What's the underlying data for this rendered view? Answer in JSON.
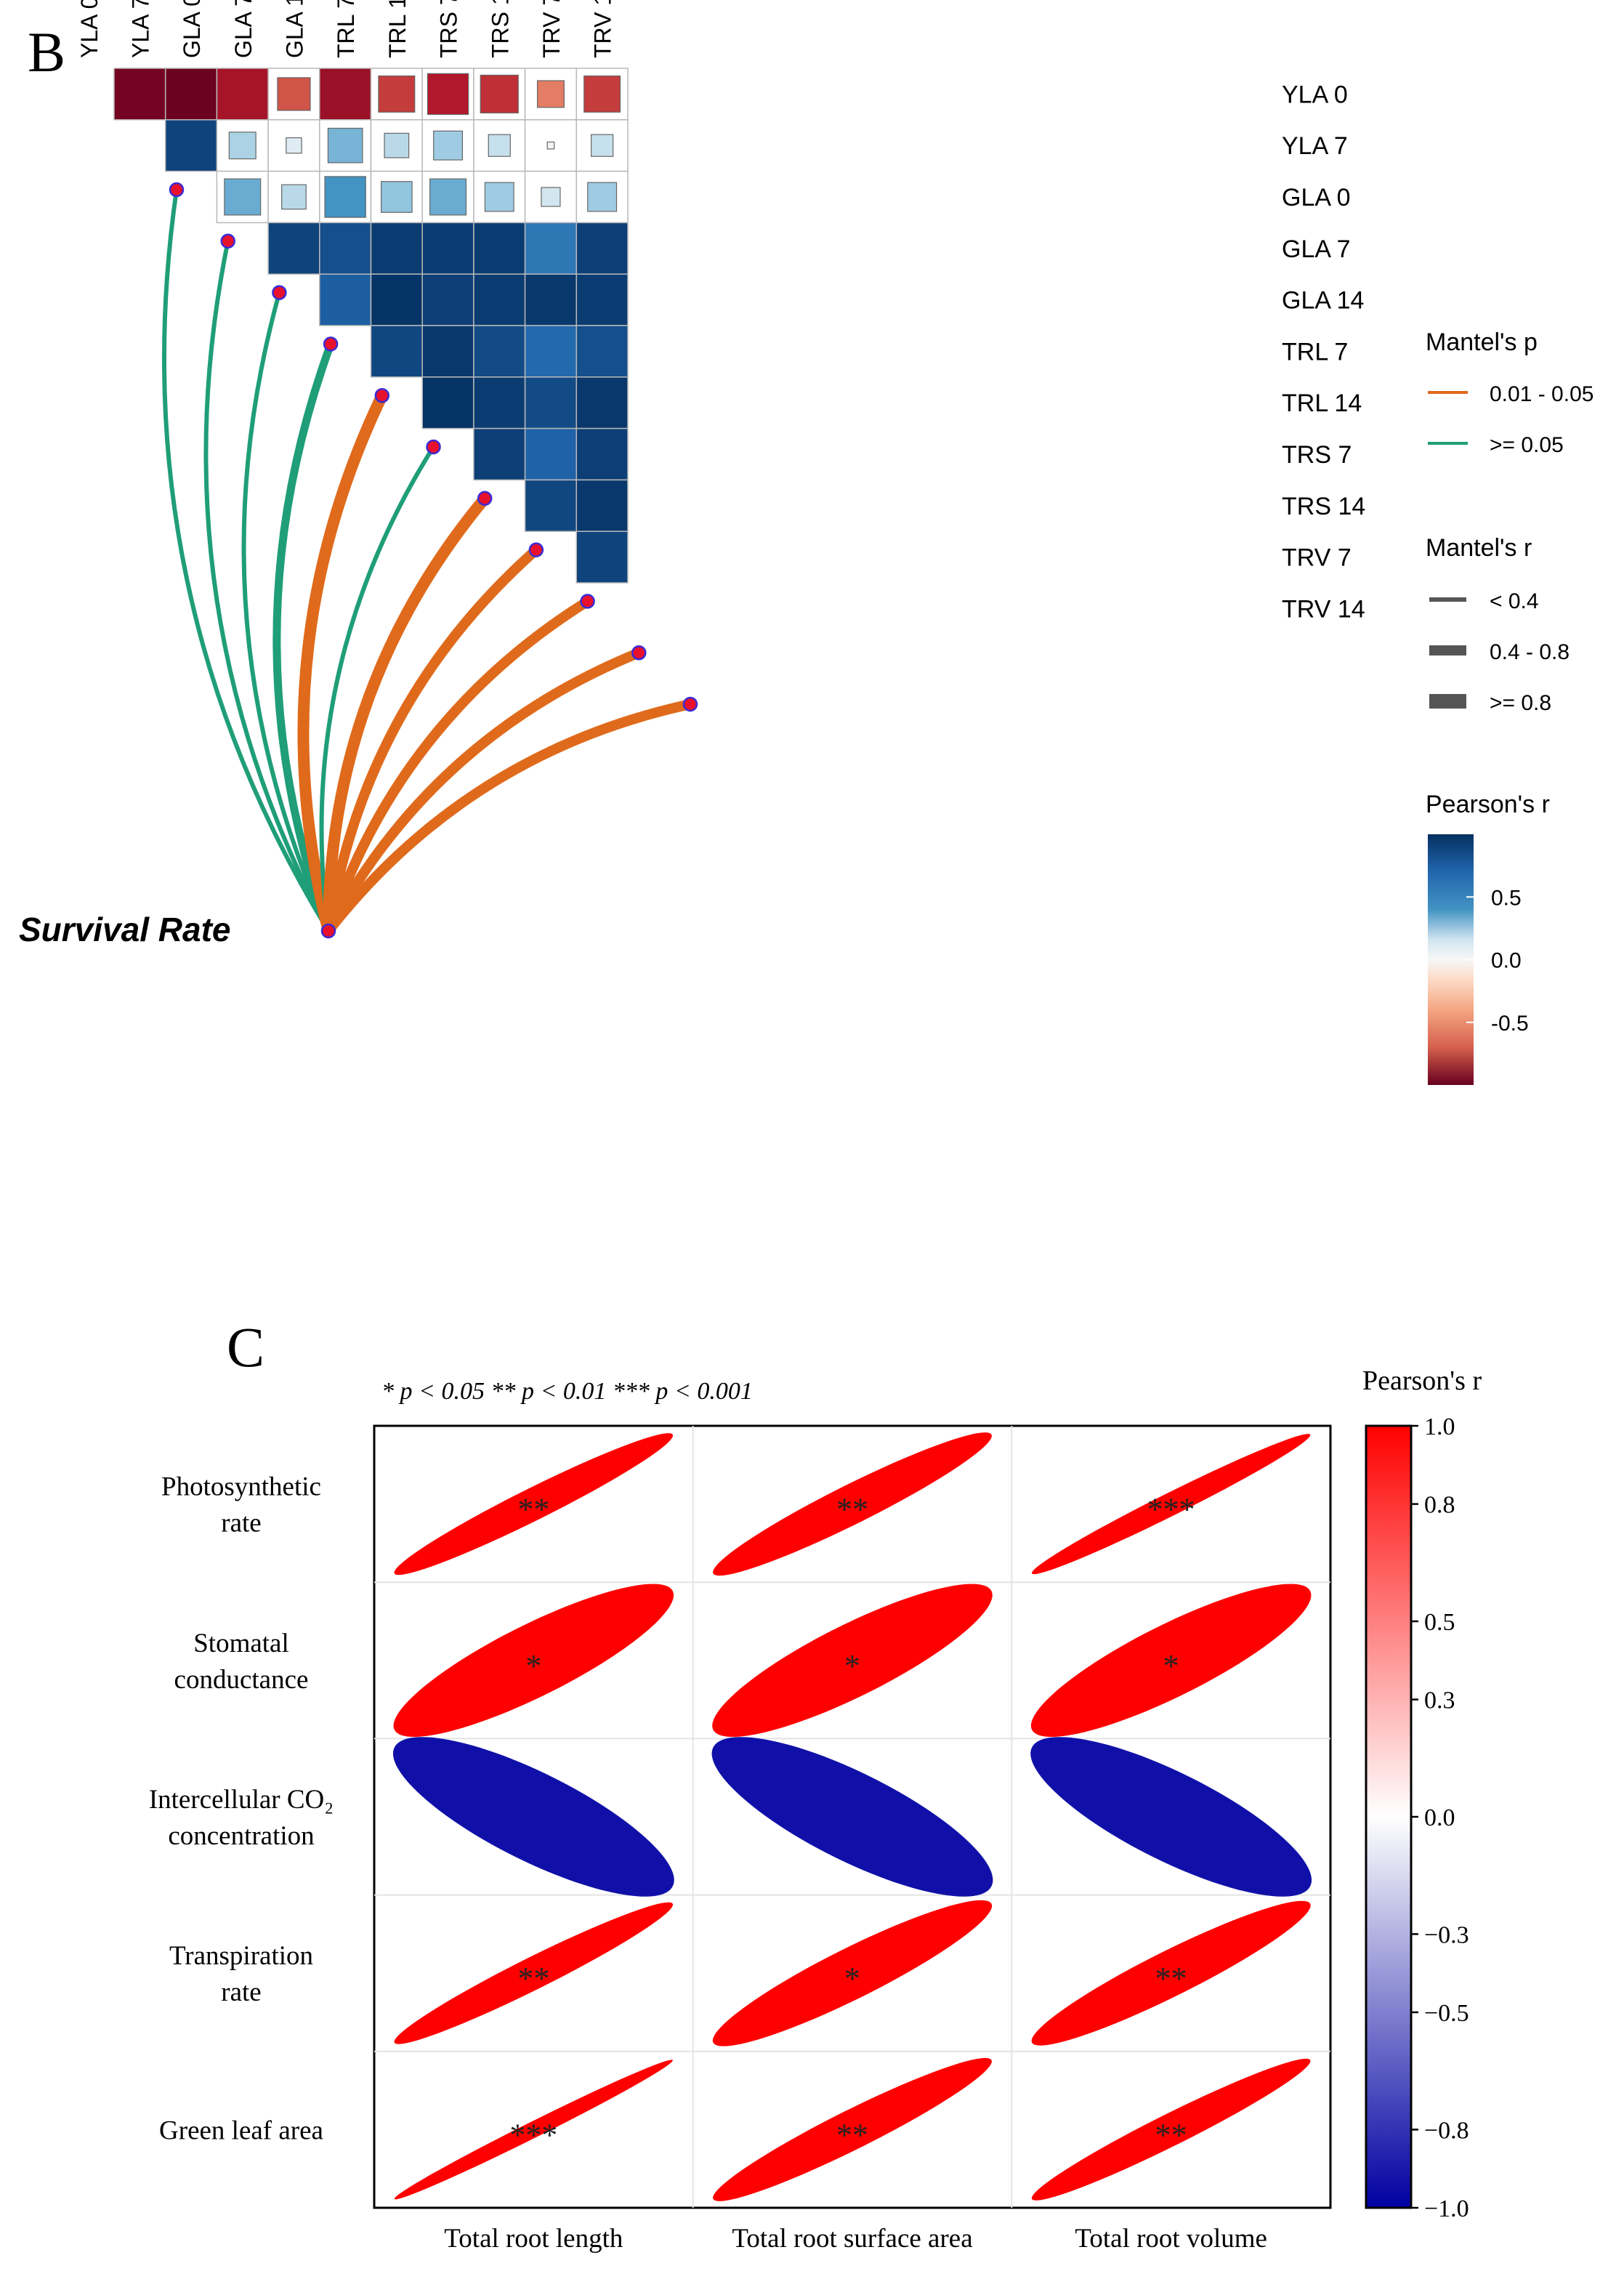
{
  "panel_b": {
    "label": "B",
    "predictor_label": "Survival Rate",
    "legend": {
      "mantel_p_title": "Mantel's p",
      "mantel_p_items": [
        {
          "label": "0.01 - 0.05",
          "color": "#e06a1b"
        },
        {
          "label": ">= 0.05",
          "color": "#1f9e77"
        }
      ],
      "mantel_r_title": "Mantel's r",
      "mantel_r_items": [
        {
          "label": "< 0.4",
          "width_class": 1
        },
        {
          "label": "0.4 - 0.8",
          "width_class": 2
        },
        {
          "label": ">= 0.8",
          "width_class": 3
        }
      ],
      "pearson_title": "Pearson's r",
      "pearson_ticks": [
        {
          "value": 0.5,
          "label": "0.5"
        },
        {
          "value": 0.0,
          "label": "0.0"
        },
        {
          "value": -0.5,
          "label": "-0.5"
        }
      ]
    },
    "colors": {
      "neg": "#67001f",
      "mid": "#f7f7f7",
      "pos": "#053061",
      "mantel_sig": "#e06a1b",
      "mantel_ns": "#1f9e77",
      "node_fill": "#e8112d",
      "node_stroke": "#3a2bd6"
    }
  },
  "panel_c": {
    "label": "C",
    "significance_note": "* p < 0.05   ** p < 0.01   *** p < 0.001",
    "colorbar_title": "Pearson's r",
    "colorbar_ticks": [
      "1.0",
      "0.8",
      "0.5",
      "0.3",
      "0.0",
      "−0.3",
      "−0.5",
      "−0.8",
      "−1.0"
    ],
    "colors": {
      "pos": "#ff0000",
      "neg": "#1010a8",
      "mid": "#ffffff"
    }
  },
  "chart_data": [
    {
      "type": "heatmap",
      "title": "",
      "variables": [
        "YLA 0",
        "YLA 7",
        "GLA 0",
        "GLA 7",
        "GLA 14",
        "TRL 7",
        "TRL 14",
        "TRS 7",
        "TRS 14",
        "TRV 7",
        "TRV 14"
      ],
      "pearson_r_upper_triangle": [
        [
          -0.95,
          -0.98,
          -0.75,
          -0.45,
          -0.8,
          -0.55,
          -0.7,
          -0.6,
          -0.3,
          -0.55
        ],
        [
          0.95,
          0.3,
          0.1,
          0.5,
          0.25,
          0.35,
          0.2,
          0.02,
          0.2
        ],
        [
          0.55,
          0.25,
          0.7,
          0.4,
          0.55,
          0.35,
          0.15,
          0.35
        ],
        [
          0.95,
          0.92,
          0.97,
          0.97,
          0.97,
          0.8,
          0.96
        ],
        [
          0.88,
          0.99,
          0.96,
          0.97,
          0.98,
          0.97
        ],
        [
          0.94,
          0.98,
          0.93,
          0.85,
          0.92
        ],
        [
          0.99,
          0.97,
          0.93,
          0.98
        ],
        [
          0.96,
          0.87,
          0.96
        ],
        [
          0.94,
          0.98
        ],
        [
          0.95
        ]
      ],
      "colorbar_range": [
        -1,
        1
      ],
      "mantel_tests": {
        "from": "Survival Rate",
        "to": [
          "YLA 0",
          "YLA 7",
          "GLA 0",
          "GLA 7",
          "GLA 14",
          "TRL 7",
          "TRL 14",
          "TRS 7",
          "TRS 14",
          "TRV 7",
          "TRV 14"
        ],
        "p_class": [
          ">= 0.05",
          ">= 0.05",
          ">= 0.05",
          ">= 0.05",
          "0.01 - 0.05",
          ">= 0.05",
          "0.01 - 0.05",
          "0.01 - 0.05",
          "0.01 - 0.05",
          "0.01 - 0.05",
          "0.01 - 0.05"
        ],
        "r_class": [
          "0.4 - 0.8",
          "0.4 - 0.8",
          "0.4 - 0.8",
          ">= 0.8",
          ">= 0.8",
          "0.4 - 0.8",
          ">= 0.8",
          ">= 0.8",
          ">= 0.8",
          ">= 0.8",
          ">= 0.8"
        ]
      }
    },
    {
      "type": "heatmap",
      "title": "",
      "rows": [
        "Photosynthetic rate",
        "Stomatal conductance",
        "Intercellular CO₂ concentration",
        "Transpiration rate",
        "Green leaf area"
      ],
      "row_label_lines": [
        [
          "Photosynthetic",
          "rate"
        ],
        [
          "Stomatal",
          "conductance"
        ],
        [
          "Intercellular CO₂",
          "concentration"
        ],
        [
          "Transpiration",
          "rate"
        ],
        [
          "Green leaf area"
        ]
      ],
      "columns": [
        "Total root length",
        "Total root surface area",
        "Total root volume"
      ],
      "values": [
        [
          0.98,
          0.97,
          0.99
        ],
        [
          0.9,
          0.9,
          0.9
        ],
        [
          -0.85,
          -0.85,
          -0.85
        ],
        [
          0.98,
          0.95,
          0.96
        ],
        [
          0.995,
          0.97,
          0.98
        ]
      ],
      "significance": [
        [
          "**",
          "**",
          "***"
        ],
        [
          "*",
          "*",
          "*"
        ],
        [
          "",
          "",
          ""
        ],
        [
          "**",
          "*",
          "**"
        ],
        [
          "***",
          "**",
          "**"
        ]
      ],
      "colorbar_range": [
        -1,
        1
      ],
      "colorbar_ticks": [
        1.0,
        0.8,
        0.5,
        0.3,
        0.0,
        -0.3,
        -0.5,
        -0.8,
        -1.0
      ]
    }
  ]
}
